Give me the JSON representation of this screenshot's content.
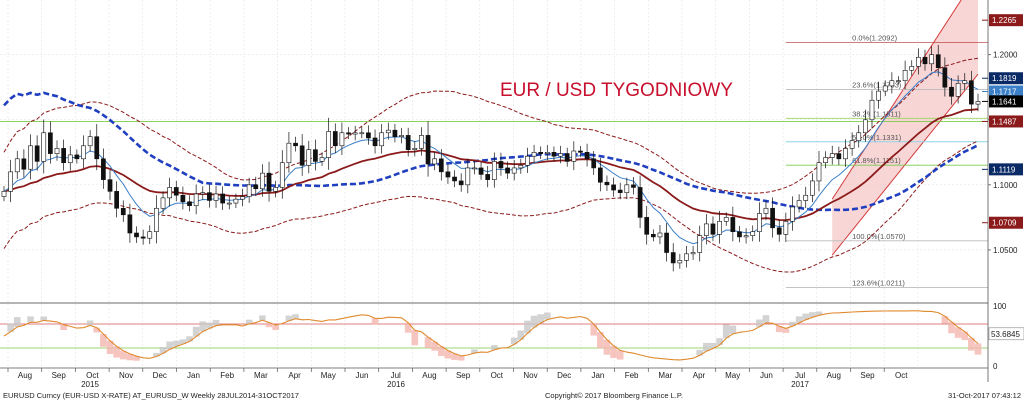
{
  "chart_data": {
    "type": "candlestick",
    "title": "EUR / USD TYGODNIOWY",
    "x_axis": {
      "months": [
        "Aug",
        "Sep",
        "Oct",
        "Nov",
        "Dec",
        "Jan",
        "Feb",
        "Mar",
        "Apr",
        "May",
        "Jun",
        "Jul",
        "Aug",
        "Sep",
        "Oct",
        "Nov",
        "Dec",
        "Jan",
        "Feb",
        "Mar",
        "Apr",
        "May",
        "Jun",
        "Jul",
        "Aug",
        "Sep",
        "Oct"
      ],
      "years": [
        "2015",
        "2016",
        "2017"
      ]
    },
    "y_axis": {
      "ticks": [
        "1.2000",
        "1.1500",
        "1.1000",
        "1.0500"
      ],
      "ylim": [
        1.01,
        1.242
      ]
    },
    "oscillator_axis": {
      "ticks": [
        "100",
        "50",
        "0"
      ],
      "ylim": [
        0,
        100
      ]
    },
    "price_tags": [
      {
        "value": "1.2265",
        "color": "#8b1a1a"
      },
      {
        "value": "1.1819",
        "color": "#0a2a66"
      },
      {
        "value": "1.1717",
        "color": "#3a7fc8"
      },
      {
        "value": "1.1641",
        "color": "#000000"
      },
      {
        "value": "1.1487",
        "color": "#8b1a1a"
      },
      {
        "value": "1.1119",
        "color": "#0a2a66"
      },
      {
        "value": "1.0709",
        "color": "#8b1a1a"
      }
    ],
    "oscillator_tag": {
      "value": "53.6845"
    },
    "fib_levels": [
      {
        "label": "0.0%(1.2092)",
        "value": 1.2092
      },
      {
        "label": "23.6%(1.1733)",
        "value": 1.1733
      },
      {
        "label": "38.2%(1.1511)",
        "value": 1.1511
      },
      {
        "label": "50.0%(1.1331)",
        "value": 1.1331
      },
      {
        "label": "61.8%(1.1151)",
        "value": 1.1151
      },
      {
        "label": "100.0%(1.0570)",
        "value": 1.057
      },
      {
        "label": "123.6%(1.0211)",
        "value": 1.0211
      }
    ],
    "series": [
      {
        "name": "EURUSD weekly",
        "close": [
          1.095,
          1.11,
          1.12,
          1.112,
          1.13,
          1.118,
          1.14,
          1.124,
          1.128,
          1.117,
          1.123,
          1.12,
          1.13,
          1.137,
          1.12,
          1.104,
          1.095,
          1.082,
          1.077,
          1.063,
          1.06,
          1.059,
          1.064,
          1.082,
          1.09,
          1.098,
          1.092,
          1.087,
          1.084,
          1.093,
          1.094,
          1.088,
          1.093,
          1.086,
          1.086,
          1.089,
          1.091,
          1.1,
          1.097,
          1.109,
          1.095,
          1.098,
          1.117,
          1.132,
          1.13,
          1.115,
          1.127,
          1.118,
          1.121,
          1.141,
          1.13,
          1.14,
          1.139,
          1.14,
          1.14,
          1.136,
          1.13,
          1.14,
          1.142,
          1.137,
          1.138,
          1.127,
          1.128,
          1.138,
          1.116,
          1.12,
          1.11,
          1.106,
          1.103,
          1.1,
          1.113,
          1.113,
          1.108,
          1.104,
          1.118,
          1.113,
          1.109,
          1.113,
          1.115,
          1.122,
          1.125,
          1.124,
          1.125,
          1.122,
          1.124,
          1.118,
          1.126,
          1.125,
          1.12,
          1.113,
          1.102,
          1.1,
          1.096,
          1.094,
          1.1,
          1.098,
          1.075,
          1.062,
          1.06,
          1.063,
          1.048,
          1.04,
          1.042,
          1.047,
          1.048,
          1.061,
          1.07,
          1.062,
          1.072,
          1.075,
          1.064,
          1.06,
          1.061,
          1.064,
          1.078,
          1.082,
          1.067,
          1.062,
          1.072,
          1.083,
          1.088,
          1.092,
          1.103,
          1.117,
          1.121,
          1.124,
          1.12,
          1.128,
          1.134,
          1.14,
          1.15,
          1.165,
          1.172,
          1.176,
          1.18,
          1.18,
          1.188,
          1.191,
          1.198,
          1.193,
          1.2,
          1.19,
          1.175,
          1.168,
          1.178,
          1.18,
          1.162,
          1.164
        ]
      },
      {
        "name": "EMA short",
        "color": "#3a7fc8"
      },
      {
        "name": "EMA long",
        "color": "#8b1a1a"
      },
      {
        "name": "SMA 200",
        "color": "#1f3fbf"
      },
      {
        "name": "Envelope",
        "color": "#8b1a1a"
      }
    ],
    "grid": true,
    "legend": "none"
  },
  "footer": {
    "left": "EURUSD Curncy (EUR-USD X-RATE) AT_EURUSD_W  Weekly 28JUL2014-31OCT2017",
    "center": "Copyright© 2017 Bloomberg Finance L.P.",
    "right": "31-Oct-2017 07:43:12"
  }
}
